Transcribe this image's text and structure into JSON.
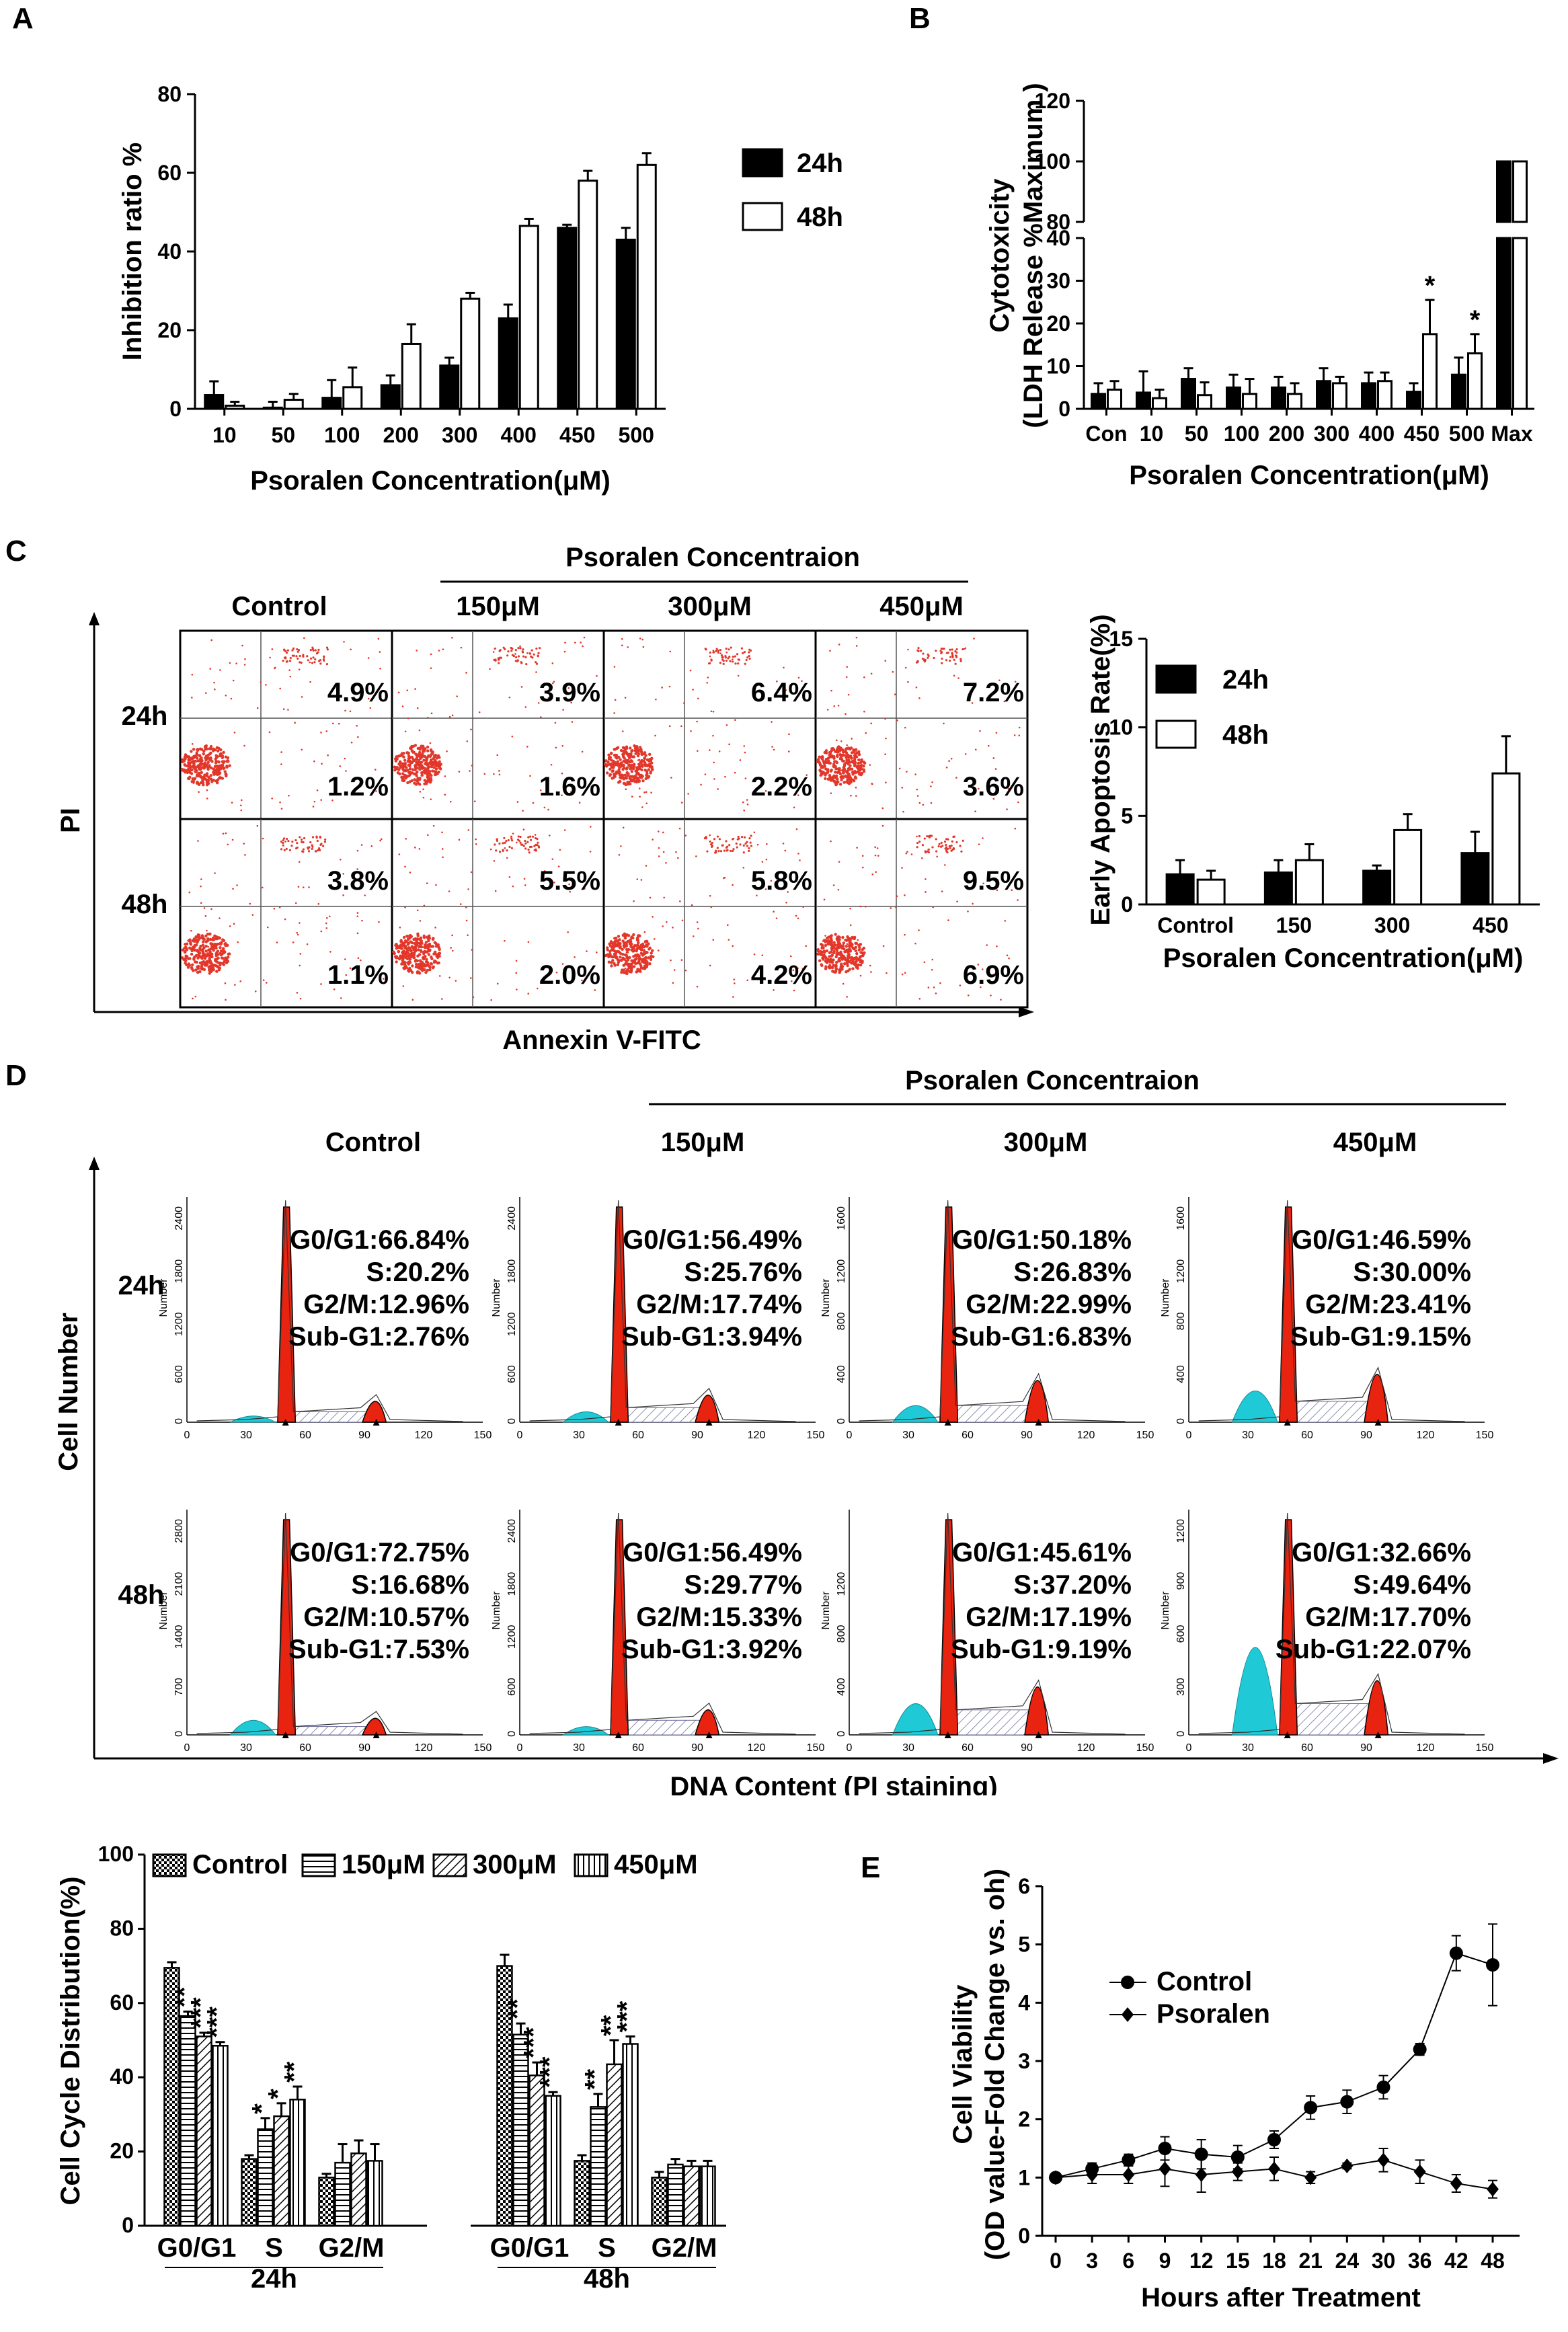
{
  "colors": {
    "red": "#e8230f",
    "cyan": "#1fc9d6",
    "hatch": "#6a6a9a",
    "dot": "#e2372a",
    "black": "#000000"
  },
  "panelA": {
    "label": "A",
    "chart_data": {
      "type": "bar",
      "categories": [
        "10",
        "50",
        "100",
        "200",
        "300",
        "400",
        "450",
        "500"
      ],
      "series": [
        {
          "name": "24h",
          "values": [
            3.5,
            0.3,
            2.8,
            6.0,
            11.0,
            23.0,
            46.0,
            43.0
          ],
          "errors": [
            3.5,
            1.5,
            4.5,
            2.5,
            2.0,
            3.5,
            0.8,
            3.0
          ]
        },
        {
          "name": "48h",
          "values": [
            0.8,
            2.3,
            5.5,
            16.5,
            28.0,
            46.5,
            58.0,
            62.0
          ],
          "errors": [
            1.0,
            1.5,
            5.0,
            5.0,
            1.5,
            1.8,
            2.5,
            3.0
          ]
        }
      ],
      "ylabel": "Inhibition ratio %",
      "xlabel": "Psoralen Concentration(μM)",
      "yticks": [
        "0",
        "20",
        "40",
        "60",
        "80"
      ],
      "ylim": [
        0,
        80
      ]
    }
  },
  "panelB": {
    "label": "B",
    "chart_data": {
      "type": "bar",
      "categories": [
        "Con",
        "10",
        "50",
        "100",
        "200",
        "300",
        "400",
        "450",
        "500",
        "Max"
      ],
      "series": [
        {
          "name": "24h",
          "values": [
            3.5,
            3.8,
            7.0,
            5.0,
            5.0,
            6.5,
            6.0,
            4.0,
            8.0,
            100
          ],
          "errors": [
            2.5,
            5.0,
            2.5,
            3.0,
            2.5,
            3.0,
            2.5,
            2.0,
            4.0,
            0
          ]
        },
        {
          "name": "48h",
          "values": [
            4.5,
            2.5,
            3.2,
            3.5,
            3.5,
            6.0,
            6.5,
            17.5,
            13.0,
            100
          ],
          "errors": [
            2.0,
            2.0,
            3.0,
            3.5,
            2.5,
            1.5,
            2.0,
            8.0,
            4.5,
            0
          ]
        }
      ],
      "stars": [
        "*",
        "*"
      ],
      "ylabel1": "Cytotoxicity",
      "ylabel2": "(LDH Release %Maximum )",
      "xlabel": "Psoralen Concentration(μM)",
      "yticks_low": [
        "0",
        "10",
        "20",
        "30",
        "40"
      ],
      "yticks_high": [
        "80",
        "100",
        "120"
      ],
      "ylim": [
        0,
        120
      ]
    }
  },
  "panelC": {
    "label": "C",
    "header": "Psoralen Concentraion",
    "cols": [
      "Control",
      "150μM",
      "300μM",
      "450μM"
    ],
    "rows": [
      "24h",
      "48h"
    ],
    "yaxis": "PI",
    "xaxis": "Annexin V-FITC",
    "values": [
      [
        "4.9%",
        "1.2%",
        "3.9%",
        "1.6%",
        "6.4%",
        "2.2%",
        "7.2%",
        "3.6%"
      ],
      [
        "3.8%",
        "1.1%",
        "5.5%",
        "2.0%",
        "5.8%",
        "4.2%",
        "9.5%",
        "6.9%"
      ]
    ],
    "chart_data": {
      "type": "bar",
      "categories": [
        "Control",
        "150",
        "300",
        "450"
      ],
      "series": [
        {
          "name": "24h",
          "values": [
            1.7,
            1.8,
            1.9,
            2.9
          ],
          "errors": [
            0.8,
            0.7,
            0.3,
            1.2
          ]
        },
        {
          "name": "48h",
          "values": [
            1.4,
            2.5,
            4.2,
            7.4
          ],
          "errors": [
            0.5,
            0.9,
            0.9,
            2.1
          ]
        }
      ],
      "ylabel": "Early Apoptosis Rate(%)",
      "xlabel": "Psoralen Concentration(μM)",
      "yticks": [
        "0",
        "5",
        "10",
        "15"
      ],
      "ylim": [
        0,
        15
      ]
    }
  },
  "panelD": {
    "label": "D",
    "header": "Psoralen Concentraion",
    "cols": [
      "Control",
      "150μM",
      "300μM",
      "450μM"
    ],
    "rows": [
      "24h",
      "48h"
    ],
    "yaxis": "Cell Number",
    "xaxis": "DNA Content (PI staining)",
    "hist_ylabel": "Number",
    "hist_xticks": [
      "0",
      "30",
      "60",
      "90",
      "120",
      "150"
    ],
    "hist_yticks": [
      [
        "0",
        "600",
        "1200",
        "1800",
        "2400"
      ],
      [
        "0",
        "600",
        "1200",
        "1800",
        "2400"
      ],
      [
        "0",
        "400",
        "800",
        "1200",
        "1600"
      ],
      [
        "0",
        "400",
        "800",
        "1200",
        "1600"
      ],
      [
        "0",
        "700",
        "1400",
        "2100",
        "2800"
      ],
      [
        "0",
        "600",
        "1200",
        "1800",
        "2400"
      ],
      [
        "0",
        "400",
        "800",
        "1200"
      ],
      [
        "0",
        "300",
        "600",
        "900",
        "1200"
      ]
    ],
    "stats": [
      [
        "G0/G1:66.84%",
        "S:20.2%",
        "G2/M:12.96%",
        "Sub-G1:2.76%"
      ],
      [
        "G0/G1:56.49%",
        "S:25.76%",
        "G2/M:17.74%",
        "Sub-G1:3.94%"
      ],
      [
        "G0/G1:50.18%",
        "S:26.83%",
        "G2/M:22.99%",
        "Sub-G1:6.83%"
      ],
      [
        "G0/G1:46.59%",
        "S:30.00%",
        "G2/M:23.41%",
        "Sub-G1:9.15%"
      ],
      [
        "G0/G1:72.75%",
        "S:16.68%",
        "G2/M:10.57%",
        "Sub-G1:7.53%"
      ],
      [
        "G0/G1:56.49%",
        "S:29.77%",
        "G2/M:15.33%",
        "Sub-G1:3.92%"
      ],
      [
        "G0/G1:45.61%",
        "S:37.20%",
        "G2/M:17.19%",
        "Sub-G1:9.19%"
      ],
      [
        "G0/G1:32.66%",
        "S:49.64%",
        "G2/M:17.70%",
        "Sub-G1:22.07%"
      ]
    ],
    "chart_data": {
      "type": "bar",
      "groups": [
        "24h",
        "48h"
      ],
      "categories": [
        "G0/G1",
        "S",
        "G2/M"
      ],
      "legend": [
        "Control",
        "150μM",
        "300μM",
        "450μM"
      ],
      "ylabel": "Cell Cycle Distribution(%)",
      "yticks": [
        "0",
        "20",
        "40",
        "60",
        "80",
        "100"
      ],
      "ylim": [
        0,
        100
      ],
      "values": [
        [
          [
            69.5,
            56.5,
            51.0,
            48.5
          ],
          [
            18.0,
            26.0,
            29.5,
            34.0
          ],
          [
            13.0,
            17.0,
            19.5,
            17.5
          ]
        ],
        [
          [
            70.0,
            51.5,
            40.5,
            35.0
          ],
          [
            17.5,
            32.0,
            43.5,
            49.0
          ],
          [
            13.0,
            16.5,
            16.0,
            16.0
          ]
        ]
      ],
      "errors": [
        [
          [
            1.5,
            1.2,
            1.0,
            1.0
          ],
          [
            1.0,
            3.0,
            3.5,
            3.5
          ],
          [
            1.0,
            5.0,
            3.5,
            4.5
          ]
        ],
        [
          [
            3.0,
            3.0,
            3.5,
            1.0
          ],
          [
            1.5,
            3.5,
            6.5,
            2.0
          ],
          [
            1.5,
            1.5,
            1.5,
            1.5
          ]
        ]
      ],
      "stars": [
        [
          [
            "",
            "**",
            "***",
            "***"
          ],
          [
            "",
            "*",
            "*",
            "**"
          ],
          [
            "",
            "",
            "",
            ""
          ]
        ],
        [
          [
            "",
            "**",
            "***",
            "***"
          ],
          [
            "",
            "**",
            "**",
            "***"
          ],
          [
            "",
            "",
            "",
            ""
          ]
        ]
      ]
    }
  },
  "panelE": {
    "label": "E",
    "chart_data": {
      "type": "line",
      "x": [
        0,
        3,
        6,
        9,
        12,
        15,
        18,
        21,
        24,
        30,
        36,
        42,
        48
      ],
      "xticks": [
        "0",
        "3",
        "6",
        "9",
        "12",
        "15",
        "18",
        "21",
        "24",
        "30",
        "36",
        "42",
        "48"
      ],
      "series": [
        {
          "name": "Control",
          "values": [
            1.0,
            1.15,
            1.3,
            1.5,
            1.4,
            1.35,
            1.65,
            2.2,
            2.3,
            2.55,
            3.2,
            4.85,
            4.65
          ],
          "errors": [
            0.05,
            0.1,
            0.1,
            0.2,
            0.25,
            0.2,
            0.15,
            0.2,
            0.2,
            0.2,
            0.1,
            0.3,
            0.7
          ]
        },
        {
          "name": "Psoralen",
          "values": [
            1.0,
            1.05,
            1.05,
            1.15,
            1.05,
            1.1,
            1.15,
            1.0,
            1.2,
            1.3,
            1.1,
            0.9,
            0.8
          ],
          "errors": [
            0.05,
            0.15,
            0.15,
            0.3,
            0.3,
            0.15,
            0.2,
            0.1,
            0.05,
            0.2,
            0.2,
            0.15,
            0.15
          ]
        }
      ],
      "ylabel1": "Cell Viability",
      "ylabel2": "(OD value-Fold Change vs. oh)",
      "xlabel": "Hours after Treatment",
      "yticks": [
        "0",
        "1",
        "2",
        "3",
        "4",
        "5",
        "6"
      ],
      "ylim": [
        0,
        6
      ]
    }
  }
}
